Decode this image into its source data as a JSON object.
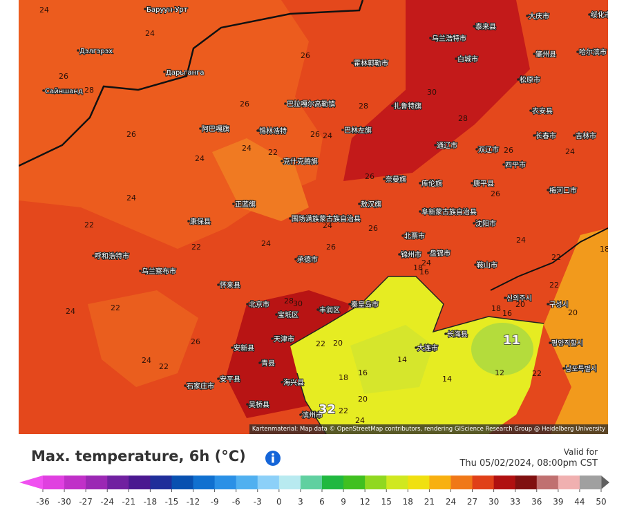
{
  "map": {
    "places": [
      "泰来县",
      "大庆市",
      "绥化市",
      "乌兰浩特市",
      "哈尔滨市",
      "肇州县",
      "霍林郭勒市",
      "白城市",
      "松原市",
      "巴拉嘎尔高勒镇",
      "扎鲁特旗",
      "农安县",
      "长春市",
      "吉林市",
      "阿巴嘎旗",
      "锡林浩特",
      "巴林左旗",
      "通辽市",
      "双辽市",
      "四平市",
      "克什克腾旗",
      "奈曼旗",
      "库伦旗",
      "康平县",
      "梅河口市",
      "正蓝旗",
      "围场满族蒙古族自治县",
      "敖汉旗",
      "阜新蒙古族自治县",
      "沈阳市",
      "北票市",
      "康保县",
      "承德市",
      "锦州市",
      "盘锦市",
      "鞍山市",
      "北京市",
      "天津市",
      "丰润区",
      "秦皇岛市",
      "大连市",
      "宝坻区",
      "石家庄市",
      "安新县",
      "青县",
      "海兴县",
      "滨州市",
      "呼和浩特市",
      "乌兰察布市",
      "怀来县",
      "安平县",
      "吴桥县",
      "长海县",
      "평양직할시",
      "남포특별시",
      "신의주시",
      "구성시",
      "Баруун-Урт",
      "Дэлгэрэх",
      "Дарьганга",
      "Сайншанд"
    ],
    "temperature_labels": [
      24,
      24,
      26,
      28,
      26,
      26,
      26,
      24,
      24,
      22,
      28,
      26,
      24,
      30,
      28,
      26,
      24,
      26,
      26,
      24,
      22,
      22,
      24,
      26,
      24,
      26,
      24,
      22,
      18,
      16,
      24,
      22,
      20,
      18,
      16,
      11,
      12,
      14,
      16,
      18,
      20,
      14,
      20,
      22,
      32,
      22,
      24,
      22,
      20,
      18,
      22,
      24,
      22,
      24,
      26,
      30,
      28
    ],
    "attribution": "Kartenmaterial: Map data © OpenStreetMap contributors, rendering GIScience Research Group @ Heidelberg University"
  },
  "header": {
    "title": "Max. temperature, 6h (°C)",
    "valid_label": "Valid for",
    "valid_time": "Thu 05/02/2024, 08:00pm CST"
  },
  "legend": {
    "ticks": [
      -36,
      -30,
      -27,
      -24,
      -21,
      -18,
      -15,
      -12,
      -9,
      -6,
      -3,
      0,
      3,
      6,
      9,
      12,
      15,
      18,
      21,
      24,
      27,
      30,
      33,
      36,
      39,
      44,
      50
    ],
    "colors": [
      "#e040e0",
      "#c030c8",
      "#9b28b4",
      "#7020a0",
      "#4a1890",
      "#1f2e9a",
      "#0850b0",
      "#1070d0",
      "#2a90e6",
      "#50b0f0",
      "#8cd0f8",
      "#b8eaf0",
      "#60d0a0",
      "#20b840",
      "#40c020",
      "#90d820",
      "#d0e820",
      "#f0e010",
      "#f8b010",
      "#f07818",
      "#e04018",
      "#b01010",
      "#801010",
      "#c07070",
      "#f0b0b0",
      "#a0a0a0"
    ],
    "under_color": "#f050f0",
    "over_color": "#606060"
  }
}
